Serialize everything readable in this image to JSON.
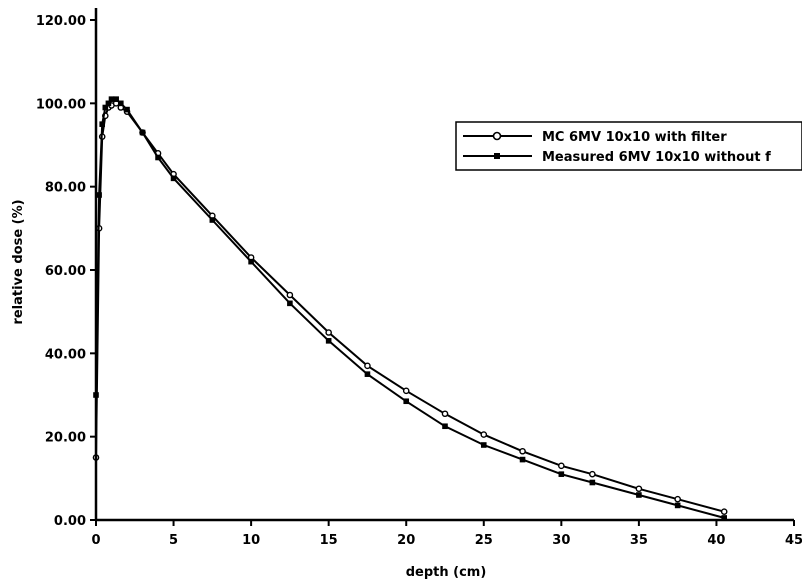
{
  "chart_data": {
    "type": "line",
    "xlabel": "depth (cm)",
    "ylabel": "relative dose (%)",
    "xlim": [
      0,
      45
    ],
    "ylim": [
      0,
      120
    ],
    "x_ticks": [
      "0",
      "5",
      "10",
      "15",
      "20",
      "25",
      "30",
      "35",
      "40",
      "45"
    ],
    "y_ticks": [
      "0.00",
      "20.00",
      "40.00",
      "60.00",
      "80.00",
      "100.00",
      "120.00"
    ],
    "grid": false,
    "legend_position": "top-right",
    "series": [
      {
        "name": "MC 6MV 10x10 with filter",
        "marker": "circle",
        "x": [
          0,
          0.2,
          0.4,
          0.6,
          0.8,
          1.0,
          1.3,
          1.6,
          2.0,
          3,
          4,
          5,
          7.5,
          10,
          12.5,
          15,
          17.5,
          20,
          22.5,
          25,
          27.5,
          30,
          32,
          35,
          37.5,
          40.5
        ],
        "y": [
          15,
          70,
          92,
          97,
          99,
          99.5,
          100,
          99,
          98,
          93,
          88,
          83,
          73,
          63,
          54,
          45,
          37,
          31,
          25.5,
          20.5,
          16.5,
          13,
          11,
          7.5,
          5,
          2
        ]
      },
      {
        "name": "Measured 6MV  10x10 without f",
        "marker": "square",
        "x": [
          0,
          0.2,
          0.4,
          0.6,
          0.8,
          1.0,
          1.3,
          1.6,
          2.0,
          3,
          4,
          5,
          7.5,
          10,
          12.5,
          15,
          17.5,
          20,
          22.5,
          25,
          27.5,
          30,
          32,
          35,
          37.5,
          40.5
        ],
        "y": [
          30,
          78,
          95,
          99,
          100,
          101,
          101,
          100,
          98.5,
          93,
          87,
          82,
          72,
          62,
          52,
          43,
          35,
          28.5,
          22.5,
          18,
          14.5,
          11,
          9,
          6,
          3.5,
          0.5
        ]
      }
    ]
  }
}
